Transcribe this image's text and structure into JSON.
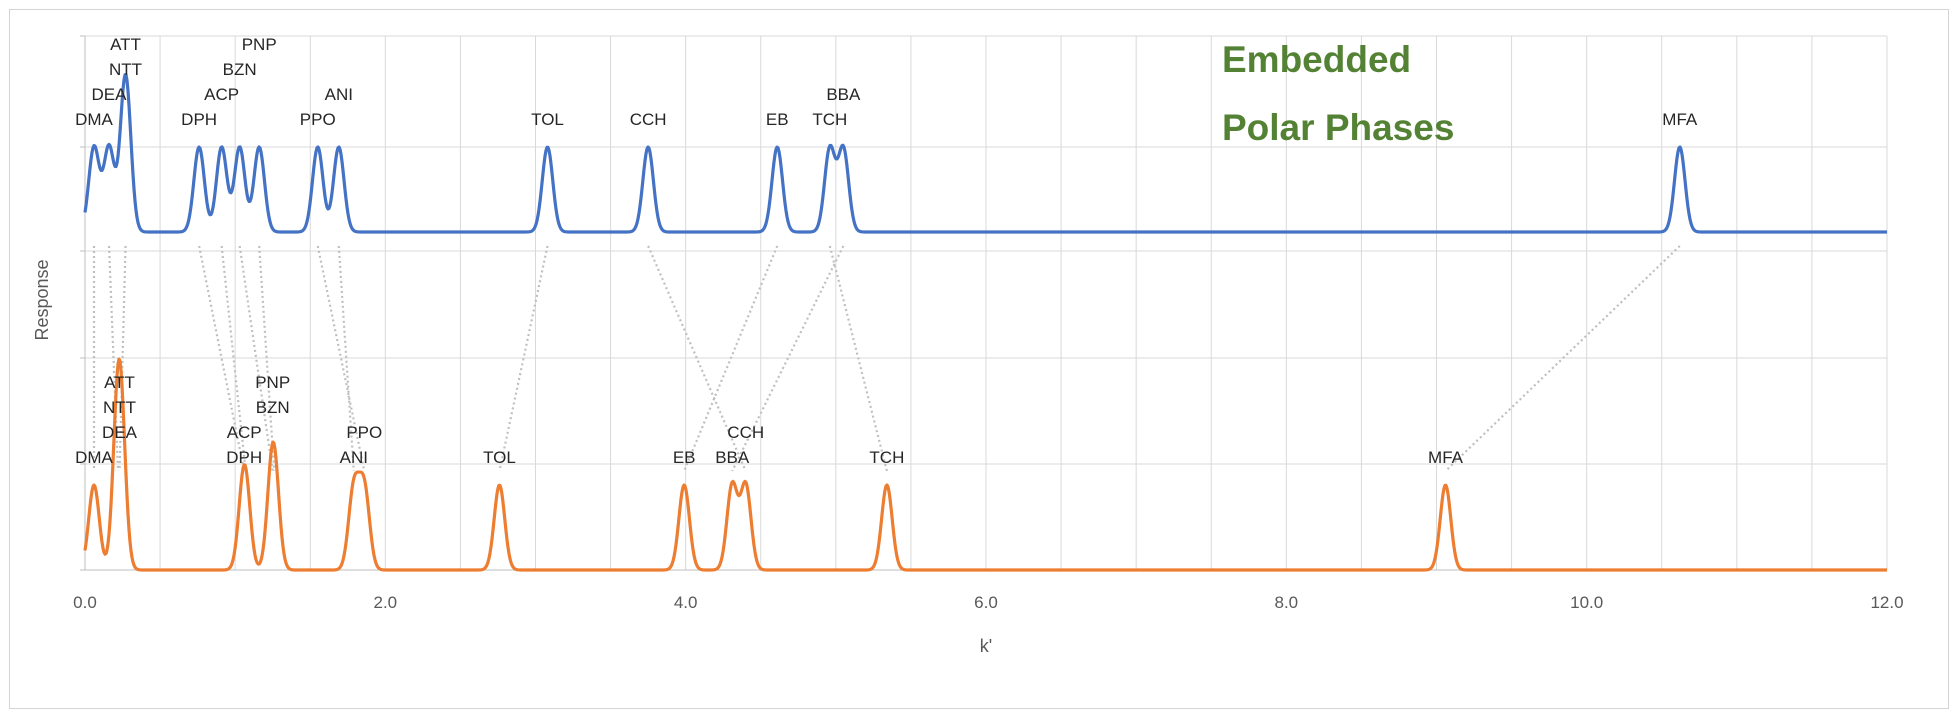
{
  "chart_data": {
    "type": "line",
    "title": "",
    "annotation": [
      "Embedded",
      "Polar Phases"
    ],
    "annotation_color": "#548235",
    "xlabel": "k'",
    "ylabel": "Response",
    "xlim": [
      0,
      12
    ],
    "x_ticks": [
      "0.0",
      "2.0",
      "4.0",
      "6.0",
      "8.0",
      "10.0",
      "12.0"
    ],
    "grid": "vertical and horizontal gridlines",
    "y_tick_labels": "none",
    "series": [
      {
        "color": "#4472c4",
        "peaks": [
          {
            "k": 0.06,
            "h": 1.0
          },
          {
            "k": 0.16,
            "h": 1.0
          },
          {
            "k": 0.27,
            "h": 1.85
          },
          {
            "k": 0.76,
            "h": 1.0
          },
          {
            "k": 0.91,
            "h": 1.0
          },
          {
            "k": 1.03,
            "h": 1.0
          },
          {
            "k": 1.16,
            "h": 1.0
          },
          {
            "k": 1.55,
            "h": 1.0
          },
          {
            "k": 1.69,
            "h": 1.0
          },
          {
            "k": 3.08,
            "h": 1.0
          },
          {
            "k": 3.75,
            "h": 1.0
          },
          {
            "k": 4.61,
            "h": 1.0
          },
          {
            "k": 4.96,
            "h": 0.98
          },
          {
            "k": 5.05,
            "h": 0.98
          },
          {
            "k": 10.62,
            "h": 1.0
          }
        ],
        "labels": [
          {
            "text": "DMA",
            "k": 0.06,
            "row": 0
          },
          {
            "text": "DEA",
            "k": 0.16,
            "row": 1
          },
          {
            "text": "NTT",
            "k": 0.27,
            "row": 2
          },
          {
            "text": "ATT",
            "k": 0.27,
            "row": 3
          },
          {
            "text": "DPH",
            "k": 0.76,
            "row": 0
          },
          {
            "text": "ACP",
            "k": 0.91,
            "row": 1
          },
          {
            "text": "BZN",
            "k": 1.03,
            "row": 2
          },
          {
            "text": "PNP",
            "k": 1.16,
            "row": 3
          },
          {
            "text": "PPO",
            "k": 1.55,
            "row": 0
          },
          {
            "text": "ANI",
            "k": 1.69,
            "row": 1
          },
          {
            "text": "TOL",
            "k": 3.08,
            "row": 0
          },
          {
            "text": "CCH",
            "k": 3.75,
            "row": 0
          },
          {
            "text": "EB",
            "k": 4.61,
            "row": 0
          },
          {
            "text": "TCH",
            "k": 4.96,
            "row": 0
          },
          {
            "text": "BBA",
            "k": 5.05,
            "row": 1
          },
          {
            "text": "MFA",
            "k": 10.62,
            "row": 0
          }
        ]
      },
      {
        "color": "#ed7d31",
        "peaks": [
          {
            "k": 0.06,
            "h": 1.0
          },
          {
            "k": 0.22,
            "h": 1.02
          },
          {
            "k": 0.23,
            "h": 1.02
          },
          {
            "k": 0.24,
            "h": 0.5
          },
          {
            "k": 1.06,
            "h": 1.0
          },
          {
            "k": 1.07,
            "h": 0.25
          },
          {
            "k": 1.25,
            "h": 1.0
          },
          {
            "k": 1.26,
            "h": 0.52
          },
          {
            "k": 1.79,
            "h": 0.95
          },
          {
            "k": 1.86,
            "h": 0.95
          },
          {
            "k": 2.76,
            "h": 1.0
          },
          {
            "k": 3.99,
            "h": 1.0
          },
          {
            "k": 4.31,
            "h": 1.0
          },
          {
            "k": 4.4,
            "h": 1.0
          },
          {
            "k": 5.34,
            "h": 1.0
          },
          {
            "k": 9.06,
            "h": 1.0
          }
        ],
        "labels": [
          {
            "text": "DMA",
            "k": 0.06,
            "row": 0
          },
          {
            "text": "DEA",
            "k": 0.23,
            "row": 1
          },
          {
            "text": "NTT",
            "k": 0.23,
            "row": 2
          },
          {
            "text": "ATT",
            "k": 0.23,
            "row": 3
          },
          {
            "text": "DPH",
            "k": 1.06,
            "row": 0
          },
          {
            "text": "ACP",
            "k": 1.06,
            "row": 1
          },
          {
            "text": "BZN",
            "k": 1.25,
            "row": 2
          },
          {
            "text": "PNP",
            "k": 1.25,
            "row": 3
          },
          {
            "text": "ANI",
            "k": 1.79,
            "row": 0
          },
          {
            "text": "PPO",
            "k": 1.86,
            "row": 1
          },
          {
            "text": "TOL",
            "k": 2.76,
            "row": 0
          },
          {
            "text": "EB",
            "k": 3.99,
            "row": 0
          },
          {
            "text": "BBA",
            "k": 4.31,
            "row": 0
          },
          {
            "text": "CCH",
            "k": 4.4,
            "row": 1
          },
          {
            "text": "TCH",
            "k": 5.34,
            "row": 0
          },
          {
            "text": "MFA",
            "k": 9.06,
            "row": 0
          }
        ]
      }
    ],
    "correlation_lines": [
      {
        "from_k": 0.06,
        "to_k": 0.06
      },
      {
        "from_k": 0.16,
        "to_k": 0.22
      },
      {
        "from_k": 0.27,
        "to_k": 0.23
      },
      {
        "from_k": 0.76,
        "to_k": 1.06
      },
      {
        "from_k": 0.91,
        "to_k": 1.07
      },
      {
        "from_k": 1.03,
        "to_k": 1.25
      },
      {
        "from_k": 1.16,
        "to_k": 1.26
      },
      {
        "from_k": 1.55,
        "to_k": 1.86
      },
      {
        "from_k": 1.69,
        "to_k": 1.79
      },
      {
        "from_k": 3.08,
        "to_k": 2.76
      },
      {
        "from_k": 3.75,
        "to_k": 4.4
      },
      {
        "from_k": 4.61,
        "to_k": 3.99
      },
      {
        "from_k": 4.96,
        "to_k": 5.34
      },
      {
        "from_k": 5.05,
        "to_k": 4.31
      },
      {
        "from_k": 10.62,
        "to_k": 9.06
      }
    ]
  }
}
